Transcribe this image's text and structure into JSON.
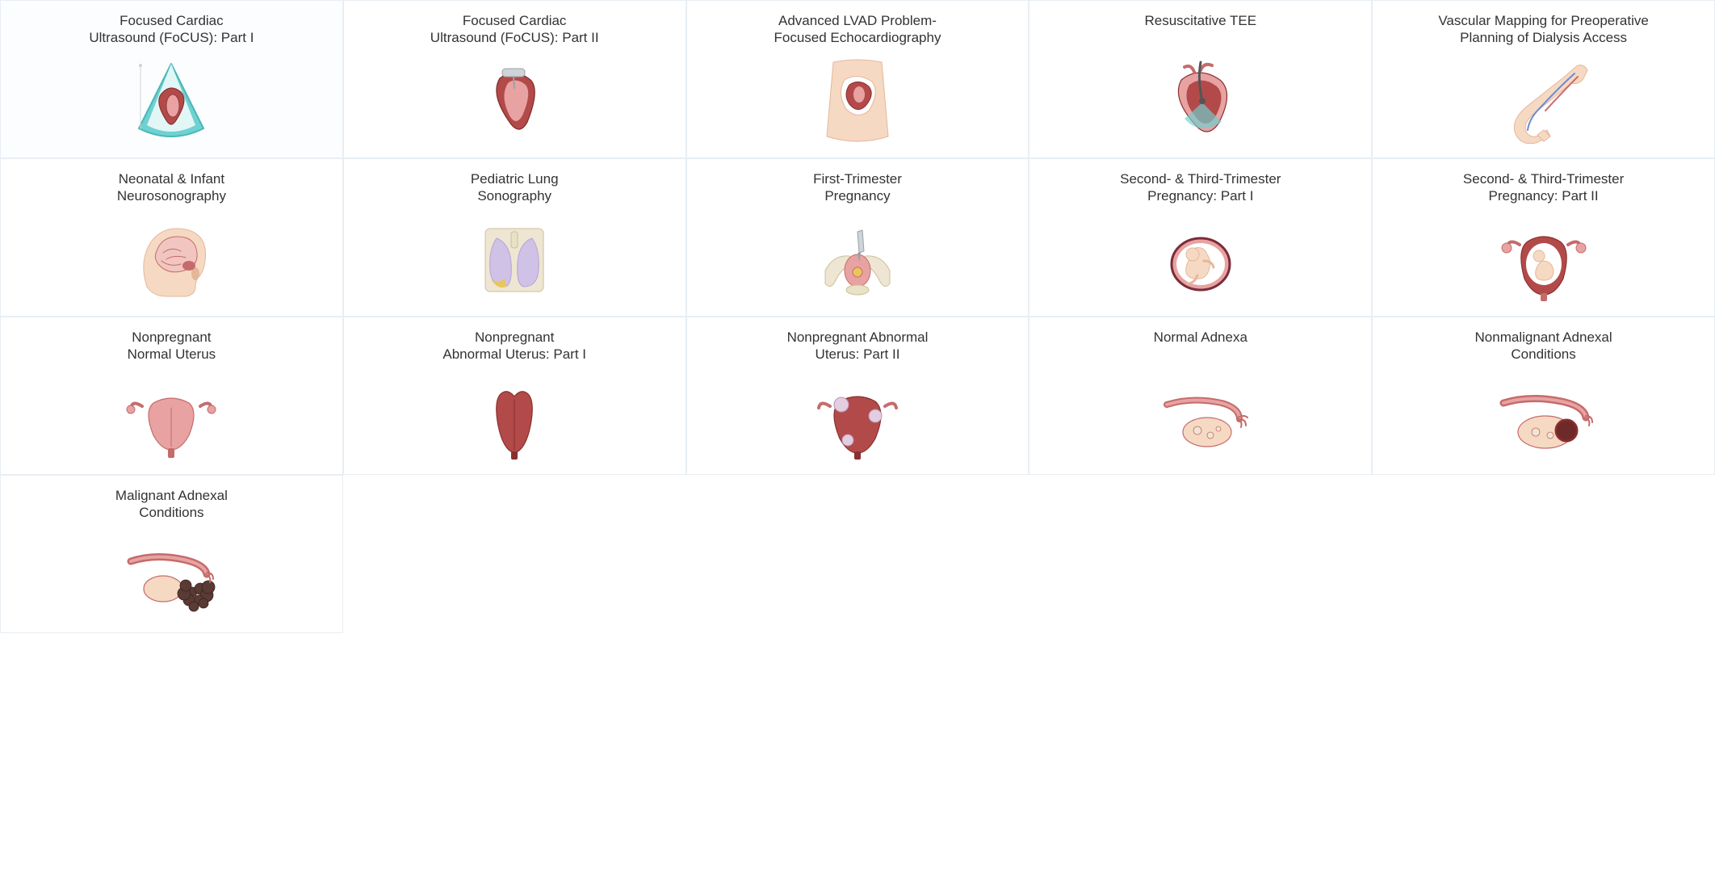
{
  "layout": {
    "columns": 5,
    "card_border_color": "#e8eef4",
    "background_color": "#ffffff",
    "title_color": "#333333",
    "title_fontsize": 17,
    "title_fontweight": 300
  },
  "palette": {
    "flesh_light": "#f6d9c3",
    "flesh_mid": "#e4b79a",
    "muscle_red": "#b34a4a",
    "muscle_dark": "#8a2f2f",
    "organ_pink": "#e8a2a2",
    "organ_deep": "#c56b6b",
    "brain_pink": "#f1c6c0",
    "lung_lav": "#cfc2e6",
    "lung_lav_d": "#b5a4d6",
    "teal": "#6fd1d1",
    "teal_d": "#49b7b7",
    "yellow": "#e8c65b",
    "bone": "#eee6d2",
    "grey": "#cfd4d8",
    "dark_mass": "#5a3a34",
    "maroon": "#7a2c3a",
    "white": "#ffffff"
  },
  "cards": [
    {
      "id": "focus-p1",
      "title": "Focused Cardiac\nUltrasound (FoCUS): Part I",
      "icon": "focus1"
    },
    {
      "id": "focus-p2",
      "title": "Focused Cardiac\nUltrasound (FoCUS): Part II",
      "icon": "focus2"
    },
    {
      "id": "lvad",
      "title": "Advanced LVAD Problem-\nFocused Echocardiography",
      "icon": "lvad"
    },
    {
      "id": "tee",
      "title": "Resuscitative TEE",
      "icon": "tee"
    },
    {
      "id": "vasc-map",
      "title": "Vascular Mapping for Preoperative\nPlanning of Dialysis Access",
      "icon": "arm"
    },
    {
      "id": "neo-neuro",
      "title": "Neonatal & Infant\nNeurosonography",
      "icon": "neonate"
    },
    {
      "id": "ped-lung",
      "title": "Pediatric Lung\nSonography",
      "icon": "lungs"
    },
    {
      "id": "tri1",
      "title": "First-Trimester\nPregnancy",
      "icon": "tri1"
    },
    {
      "id": "tri23-p1",
      "title": "Second- & Third-Trimester\nPregnancy: Part I",
      "icon": "tri23a"
    },
    {
      "id": "tri23-p2",
      "title": "Second- & Third-Trimester\nPregnancy: Part II",
      "icon": "tri23b"
    },
    {
      "id": "np-normal",
      "title": "Nonpregnant\nNormal Uterus",
      "icon": "uterus_norm"
    },
    {
      "id": "np-ab1",
      "title": "Nonpregnant\nAbnormal Uterus: Part I",
      "icon": "uterus_ab1"
    },
    {
      "id": "np-ab2",
      "title": "Nonpregnant Abnormal\nUterus: Part II",
      "icon": "uterus_ab2"
    },
    {
      "id": "adnexa-n",
      "title": "Normal Adnexa",
      "icon": "adnexa_norm"
    },
    {
      "id": "adnexa-nm",
      "title": "Nonmalignant Adnexal\nConditions",
      "icon": "adnexa_nm"
    },
    {
      "id": "adnexa-m",
      "title": "Malignant Adnexal\nConditions",
      "icon": "adnexa_m"
    }
  ]
}
